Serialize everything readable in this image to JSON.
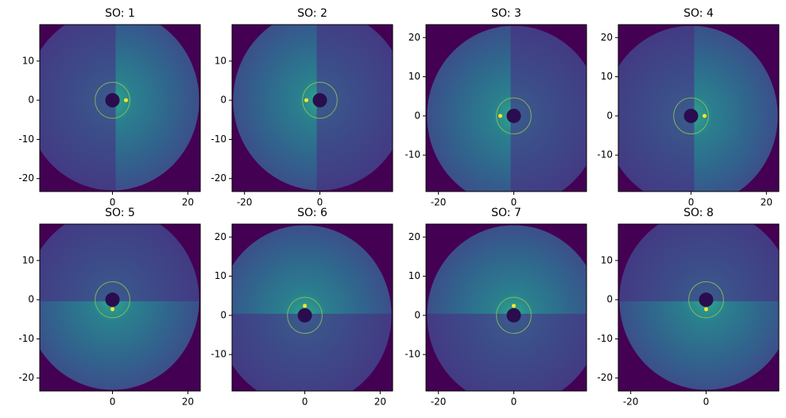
{
  "chart_data": [
    {
      "type": "image",
      "title": "SO: 1",
      "xlim": [
        -19.3,
        23.3
      ],
      "ylim": [
        -23.3,
        19.3
      ],
      "xticks": [
        0,
        20
      ],
      "yticks": [
        -20,
        -10,
        0,
        10
      ],
      "bright_side": "right"
    },
    {
      "type": "image",
      "title": "SO: 2",
      "xlim": [
        -23.3,
        19.3
      ],
      "ylim": [
        -23.3,
        19.3
      ],
      "xticks": [
        -20,
        0
      ],
      "yticks": [
        -20,
        -10,
        0,
        10
      ],
      "bright_side": "left"
    },
    {
      "type": "image",
      "title": "SO: 3",
      "xlim": [
        -23.3,
        19.3
      ],
      "ylim": [
        -19.3,
        23.3
      ],
      "xticks": [
        -20,
        0
      ],
      "yticks": [
        -10,
        0,
        10,
        20
      ],
      "bright_side": "left"
    },
    {
      "type": "image",
      "title": "SO: 4",
      "xlim": [
        -19.3,
        23.3
      ],
      "ylim": [
        -19.3,
        23.3
      ],
      "xticks": [
        0,
        20
      ],
      "yticks": [
        -10,
        0,
        10,
        20
      ],
      "bright_side": "right"
    },
    {
      "type": "image",
      "title": "SO: 5",
      "xlim": [
        -19.3,
        23.3
      ],
      "ylim": [
        -23.3,
        19.3
      ],
      "xticks": [
        0,
        20
      ],
      "yticks": [
        -20,
        -10,
        0,
        10
      ],
      "bright_side": "bottom"
    },
    {
      "type": "image",
      "title": "SO: 6",
      "xlim": [
        -19.3,
        23.3
      ],
      "ylim": [
        -19.3,
        23.3
      ],
      "xticks": [
        0,
        20
      ],
      "yticks": [
        -10,
        0,
        10,
        20
      ],
      "bright_side": "top"
    },
    {
      "type": "image",
      "title": "SO: 7",
      "xlim": [
        -23.3,
        19.3
      ],
      "ylim": [
        -19.3,
        23.3
      ],
      "xticks": [
        -20,
        0
      ],
      "yticks": [
        -10,
        0,
        10,
        20
      ],
      "bright_side": "top"
    },
    {
      "type": "image",
      "title": "SO: 8",
      "xlim": [
        -23.3,
        19.3
      ],
      "ylim": [
        -23.3,
        19.3
      ],
      "xticks": [
        -20,
        0
      ],
      "yticks": [
        -20,
        -10,
        0,
        10
      ],
      "bright_side": "bottom"
    }
  ]
}
